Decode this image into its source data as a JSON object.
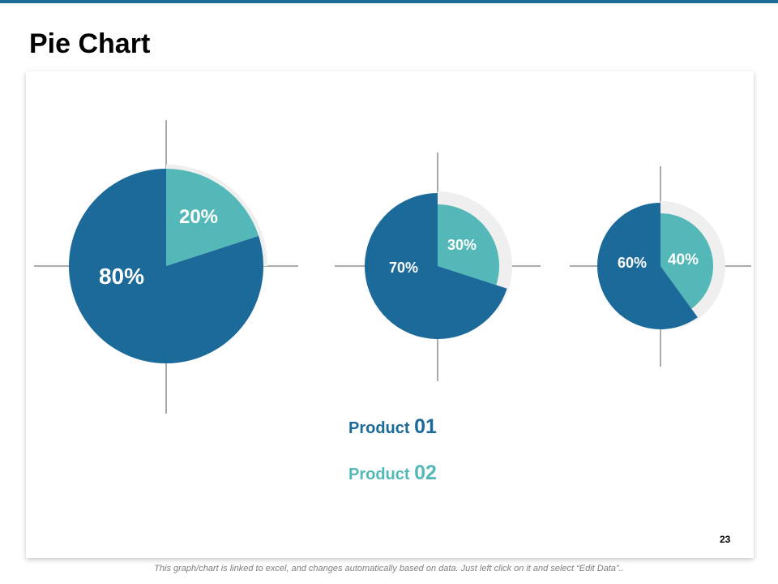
{
  "title": "Pie Chart",
  "page_number": "23",
  "footer_note": "This graph/chart is linked to excel, and changes automatically based on data. Just left click on it and select “Edit Data”..",
  "legend": {
    "product1": {
      "label": "Product",
      "number": "01"
    },
    "product2": {
      "label": "Product",
      "number": "02"
    }
  },
  "colors": {
    "product1": "#1b6a9a",
    "product2": "#54b8b8",
    "ring": "#efefef",
    "axis": "#555555",
    "title_bar": "#1b6a9a"
  },
  "chart_data": {
    "type": "pie",
    "series": [
      {
        "name": "Product 01",
        "values": [
          80,
          70,
          60
        ],
        "labels": [
          "80%",
          "70%",
          "60%"
        ]
      },
      {
        "name": "Product 02",
        "values": [
          20,
          30,
          40
        ],
        "labels": [
          "20%",
          "30%",
          "40%"
        ]
      }
    ],
    "charts": [
      {
        "product_01": 80,
        "product_02": 20
      },
      {
        "product_01": 70,
        "product_02": 30
      },
      {
        "product_01": 60,
        "product_02": 40
      }
    ]
  }
}
